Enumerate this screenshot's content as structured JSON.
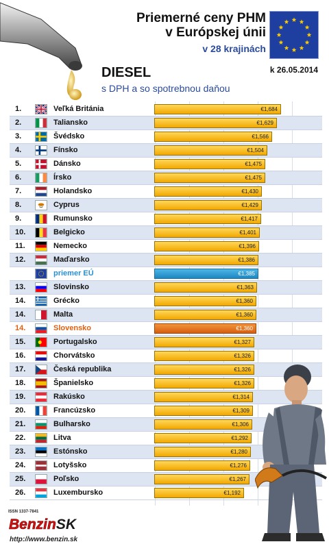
{
  "header": {
    "title_line1": "Priemerné ceny PHM",
    "title_line2": "v Európskej únii",
    "subtitle": "v 28 krajinách",
    "date": "k 26.05.2014",
    "fuel": "DIESEL",
    "vat_note": "s DPH a so spotrebnou daňou"
  },
  "footer": {
    "issn": "ISSN 1337-7841",
    "logo_text": "Benzin",
    "logo_suffix": "SK",
    "url": "http://www.benzin.sk"
  },
  "colors": {
    "bar": "#f7b500",
    "average": "#2a8fd0",
    "highlight": "#e06010",
    "stripe": "#dde5f2"
  },
  "chart_data": {
    "type": "bar",
    "orientation": "horizontal",
    "title": "Priemerné ceny PHM v Európskej únii",
    "xlim": [
      0,
      1.7
    ],
    "grid": true,
    "rows": [
      {
        "rank": "1.",
        "country": "Veľká Británia",
        "value": 1.684,
        "label": "€1,684",
        "flag": [
          "#012169",
          "#ffffff",
          "#c8102e"
        ],
        "flag_layout": "uk"
      },
      {
        "rank": "2.",
        "country": "Taliansko",
        "value": 1.629,
        "label": "€1,629",
        "flag": [
          "#009246",
          "#ffffff",
          "#ce2b37"
        ],
        "flag_layout": "v"
      },
      {
        "rank": "3.",
        "country": "Švédsko",
        "value": 1.566,
        "label": "€1,566",
        "flag": [
          "#006aa7",
          "#fecc00"
        ],
        "flag_layout": "nordic"
      },
      {
        "rank": "4.",
        "country": "Fínsko",
        "value": 1.504,
        "label": "€1,504",
        "flag": [
          "#ffffff",
          "#003580"
        ],
        "flag_layout": "nordic"
      },
      {
        "rank": "5.",
        "country": "Dánsko",
        "value": 1.475,
        "label": "€1,475",
        "flag": [
          "#c8102e",
          "#ffffff"
        ],
        "flag_layout": "nordic"
      },
      {
        "rank": "6.",
        "country": "Írsko",
        "value": 1.475,
        "label": "€1,475",
        "flag": [
          "#169b62",
          "#ffffff",
          "#ff883e"
        ],
        "flag_layout": "v"
      },
      {
        "rank": "7.",
        "country": "Holandsko",
        "value": 1.43,
        "label": "€1,430",
        "flag": [
          "#ae1c28",
          "#ffffff",
          "#21468b"
        ],
        "flag_layout": "h"
      },
      {
        "rank": "8.",
        "country": "Cyprus",
        "value": 1.429,
        "label": "€1,429",
        "flag": [
          "#ffffff",
          "#d57800"
        ],
        "flag_layout": "cy"
      },
      {
        "rank": "9.",
        "country": "Rumunsko",
        "value": 1.417,
        "label": "€1,417",
        "flag": [
          "#002b7f",
          "#fcd116",
          "#ce1126"
        ],
        "flag_layout": "v"
      },
      {
        "rank": "10.",
        "country": "Belgicko",
        "value": 1.401,
        "label": "€1,401",
        "flag": [
          "#000000",
          "#fdda24",
          "#ef3340"
        ],
        "flag_layout": "v"
      },
      {
        "rank": "11.",
        "country": "Nemecko",
        "value": 1.396,
        "label": "€1,396",
        "flag": [
          "#000000",
          "#dd0000",
          "#ffce00"
        ],
        "flag_layout": "h"
      },
      {
        "rank": "12.",
        "country": "Maďarsko",
        "value": 1.386,
        "label": "€1,386",
        "flag": [
          "#ce2939",
          "#ffffff",
          "#477050"
        ],
        "flag_layout": "h"
      },
      {
        "rank": "",
        "country": "priemer EÚ",
        "value": 1.385,
        "label": "€1,385",
        "flag": [
          "#1f3fa0",
          "#ffcc00"
        ],
        "flag_layout": "eu",
        "kind": "avg"
      },
      {
        "rank": "13.",
        "country": "Slovinsko",
        "value": 1.363,
        "label": "€1,363",
        "flag": [
          "#ffffff",
          "#0000ff",
          "#ff0000"
        ],
        "flag_layout": "h"
      },
      {
        "rank": "14.",
        "country": "Grécko",
        "value": 1.36,
        "label": "€1,360",
        "flag": [
          "#0d5eaf",
          "#ffffff"
        ],
        "flag_layout": "gr"
      },
      {
        "rank": "14.",
        "country": "Malta",
        "value": 1.36,
        "label": "€1,360",
        "flag": [
          "#ffffff",
          "#cf142b"
        ],
        "flag_layout": "v2"
      },
      {
        "rank": "14.",
        "country": "Slovensko",
        "value": 1.36,
        "label": "€1,360",
        "flag": [
          "#ffffff",
          "#0b4ea2",
          "#ee1c25"
        ],
        "flag_layout": "h",
        "kind": "sk"
      },
      {
        "rank": "15.",
        "country": "Portugalsko",
        "value": 1.327,
        "label": "€1,327",
        "flag": [
          "#006600",
          "#ff0000"
        ],
        "flag_layout": "pt"
      },
      {
        "rank": "16.",
        "country": "Chorvátsko",
        "value": 1.326,
        "label": "€1,326",
        "flag": [
          "#ff0000",
          "#ffffff",
          "#171796"
        ],
        "flag_layout": "h"
      },
      {
        "rank": "17.",
        "country": "Česká republika",
        "value": 1.326,
        "label": "€1,326",
        "flag": [
          "#ffffff",
          "#d7141a",
          "#11457e"
        ],
        "flag_layout": "cz"
      },
      {
        "rank": "18.",
        "country": "Španielsko",
        "value": 1.326,
        "label": "€1,326",
        "flag": [
          "#aa151b",
          "#f1bf00",
          "#aa151b"
        ],
        "flag_layout": "es"
      },
      {
        "rank": "19.",
        "country": "Rakúsko",
        "value": 1.314,
        "label": "€1,314",
        "flag": [
          "#ed2939",
          "#ffffff",
          "#ed2939"
        ],
        "flag_layout": "h"
      },
      {
        "rank": "20.",
        "country": "Francúzsko",
        "value": 1.309,
        "label": "€1,309",
        "flag": [
          "#0055a4",
          "#ffffff",
          "#ef4135"
        ],
        "flag_layout": "v"
      },
      {
        "rank": "21.",
        "country": "Bulharsko",
        "value": 1.306,
        "label": "€1,306",
        "flag": [
          "#ffffff",
          "#00966e",
          "#d62612"
        ],
        "flag_layout": "h"
      },
      {
        "rank": "22.",
        "country": "Litva",
        "value": 1.292,
        "label": "€1,292",
        "flag": [
          "#fdb913",
          "#006a44",
          "#c1272d"
        ],
        "flag_layout": "h"
      },
      {
        "rank": "23.",
        "country": "Estónsko",
        "value": 1.28,
        "label": "€1,280",
        "flag": [
          "#0072ce",
          "#000000",
          "#ffffff"
        ],
        "flag_layout": "h"
      },
      {
        "rank": "24.",
        "country": "Lotyšsko",
        "value": 1.276,
        "label": "€1,276",
        "flag": [
          "#9e3039",
          "#ffffff",
          "#9e3039"
        ],
        "flag_layout": "lv"
      },
      {
        "rank": "25.",
        "country": "Poľsko",
        "value": 1.267,
        "label": "€1,267",
        "flag": [
          "#ffffff",
          "#dc143c"
        ],
        "flag_layout": "h2"
      },
      {
        "rank": "26.",
        "country": "Luxembursko",
        "value": 1.192,
        "label": "€1,192",
        "flag": [
          "#ef3340",
          "#ffffff",
          "#00a3e0"
        ],
        "flag_layout": "h"
      }
    ]
  }
}
